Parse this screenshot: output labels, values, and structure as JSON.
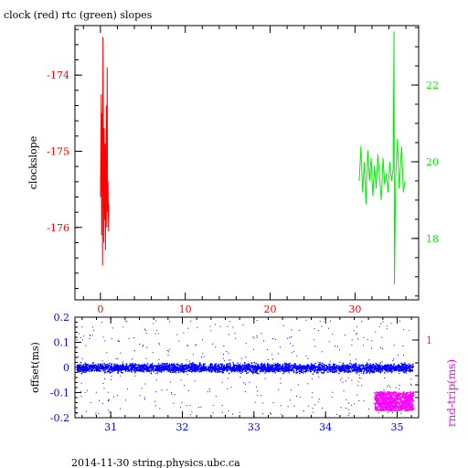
{
  "title": "clock (red) rtc (green) slopes",
  "footer": "2014-11-30 string.physics.ubc.ca",
  "colors": {
    "clock": "#ff0000",
    "rtc": "#00ee00",
    "offset": "#0000ff",
    "roundtrip": "#ff00ff",
    "axis": "#000000"
  },
  "chart_data": [
    {
      "type": "line",
      "title": "clock (red) rtc (green) slopes",
      "ylabel": "clockslope",
      "xlim": [
        -3,
        37.5
      ],
      "ylim": [
        -176.95,
        -173.35
      ],
      "y2lim": [
        16.4,
        23.55
      ],
      "x_ticks": [
        0,
        10,
        20,
        30
      ],
      "x_tick_labels": [
        "0",
        "10",
        "20",
        "30"
      ],
      "y_ticks": [
        -176,
        -175,
        -174
      ],
      "y_tick_labels": [
        "-176",
        "-175",
        "-174"
      ],
      "y2_ticks": [
        18,
        20,
        22
      ],
      "y2_tick_labels": [
        "18",
        "20",
        "22"
      ],
      "grid": false,
      "series": [
        {
          "name": "clock",
          "axis": "left",
          "x": [
            0.0,
            0.1,
            0.15,
            0.2,
            0.25,
            0.3,
            0.35,
            0.4,
            0.45,
            0.5,
            0.55,
            0.6,
            0.65,
            0.7,
            0.75,
            0.8,
            0.85,
            0.9,
            0.95,
            1.0
          ],
          "y": [
            -175.6,
            -174.25,
            -176.1,
            -174.5,
            -176.5,
            -173.5,
            -175.0,
            -176.2,
            -174.7,
            -175.9,
            -174.9,
            -176.3,
            -175.2,
            -174.4,
            -176.0,
            -173.9,
            -175.8,
            -175.4,
            -176.05,
            -175.7
          ]
        },
        {
          "name": "rtc",
          "axis": "right",
          "x": [
            30.5,
            30.7,
            30.9,
            31.1,
            31.3,
            31.5,
            31.7,
            31.9,
            32.1,
            32.3,
            32.5,
            32.7,
            32.9,
            33.1,
            33.3,
            33.5,
            33.7,
            33.9,
            34.1,
            34.3,
            34.5,
            34.6,
            34.65,
            34.8,
            35.0,
            35.2,
            35.5,
            35.7,
            35.9
          ],
          "y": [
            19.5,
            20.4,
            19.2,
            20.0,
            18.9,
            20.3,
            19.5,
            20.1,
            19.1,
            19.9,
            19.3,
            20.2,
            19.6,
            19.0,
            20.1,
            19.4,
            19.7,
            19.2,
            20.0,
            19.5,
            19.8,
            23.4,
            16.8,
            19.6,
            20.6,
            19.3,
            20.4,
            19.2,
            19.5
          ]
        }
      ]
    },
    {
      "type": "scatter",
      "ylabel": "offset(ms)",
      "y2label": "rnd-trip(ms)",
      "xlim": [
        30.5,
        35.3
      ],
      "ylim": [
        -0.2,
        0.2
      ],
      "x_ticks": [
        31,
        32,
        33,
        34,
        35
      ],
      "x_tick_labels": [
        "31",
        "32",
        "33",
        "34",
        "35"
      ],
      "y_ticks": [
        -0.2,
        -0.1,
        0,
        0.1,
        0.2
      ],
      "y_tick_labels": [
        "-0.2",
        "-0.1",
        "0",
        "0.1",
        "0.2"
      ],
      "y2_tick_labels": [
        "1"
      ],
      "grid": false,
      "series": [
        {
          "name": "offset",
          "axis": "left",
          "x_range": [
            30.52,
            35.22
          ],
          "center": 0.0,
          "band_halfwidth": 0.025,
          "outlier_range": [
            -0.19,
            0.19
          ]
        },
        {
          "name": "rnd-trip",
          "axis": "right",
          "x_range": [
            34.68,
            35.22
          ],
          "y_range": [
            -0.17,
            -0.095
          ]
        }
      ]
    }
  ]
}
